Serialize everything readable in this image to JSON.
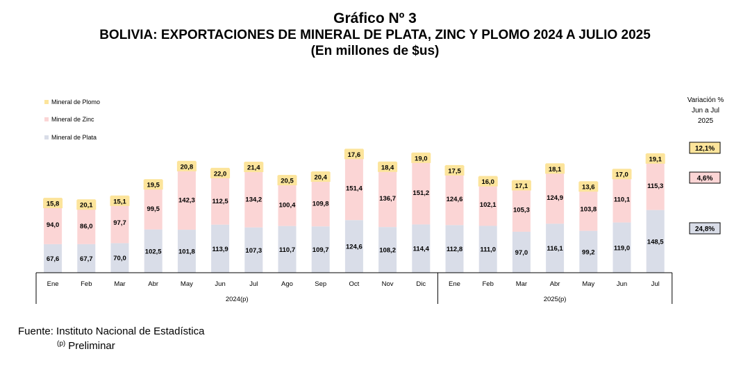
{
  "title": "Gráfico Nº 3",
  "subtitle": "BOLIVIA: EXPORTACIONES DE MINERAL DE PLATA, ZINC Y PLOMO 2024 A JULIO 2025",
  "units": "(En millones de $us)",
  "source": "Fuente: Instituto Nacional de Estadística",
  "note_mark": "(p)",
  "note_text": "Preliminar",
  "variation": {
    "title_lines": [
      "Variación %",
      "Jun a Jul",
      "2025"
    ],
    "plomo": "12,1%",
    "zinc": "4,6%",
    "plata": "24,8%"
  },
  "chart_data": {
    "type": "bar",
    "stacked": true,
    "categories": [
      "Ene",
      "Feb",
      "Mar",
      "Abr",
      "May",
      "Jun",
      "Jul",
      "Ago",
      "Sep",
      "Oct",
      "Nov",
      "Dic",
      "Ene",
      "Feb",
      "Mar",
      "Abr",
      "May",
      "Jun",
      "Jul"
    ],
    "groups": [
      {
        "label": "2024(p)",
        "count": 12
      },
      {
        "label": "2025(p)",
        "count": 7
      }
    ],
    "series": [
      {
        "name": "Mineral de Plata",
        "color": "#d9dde8",
        "values": [
          67.6,
          67.7,
          70.0,
          102.5,
          101.8,
          113.9,
          107.3,
          110.7,
          109.7,
          124.6,
          108.2,
          114.4,
          112.8,
          111.0,
          97.0,
          116.1,
          99.2,
          119.0,
          148.5
        ],
        "labels": [
          "67,6",
          "67,7",
          "70,0",
          "102,5",
          "101,8",
          "113,9",
          "107,3",
          "110,7",
          "109,7",
          "124,6",
          "108,2",
          "114,4",
          "112,8",
          "111,0",
          "97,0",
          "116,1",
          "99,2",
          "119,0",
          "148,5"
        ]
      },
      {
        "name": "Mineral de Zinc",
        "color": "#fbd5d5",
        "values": [
          94.0,
          86.0,
          97.7,
          99.5,
          142.3,
          112.5,
          134.2,
          100.4,
          109.8,
          151.4,
          136.7,
          151.2,
          124.6,
          102.1,
          105.3,
          124.9,
          103.8,
          110.1,
          115.3
        ],
        "labels": [
          "94,0",
          "86,0",
          "97,7",
          "99,5",
          "142,3",
          "112,5",
          "134,2",
          "100,4",
          "109,8",
          "151,4",
          "136,7",
          "151,2",
          "124,6",
          "102,1",
          "105,3",
          "124,9",
          "103,8",
          "110,1",
          "115,3"
        ]
      },
      {
        "name": "Mineral de Plomo",
        "color": "#fce49b",
        "values": [
          15.8,
          20.1,
          15.1,
          19.5,
          20.8,
          22.0,
          21.4,
          20.5,
          20.4,
          17.6,
          18.4,
          19.0,
          17.5,
          16.0,
          17.1,
          18.1,
          13.6,
          17.0,
          19.1
        ],
        "labels": [
          "15,8",
          "20,1",
          "15,1",
          "19,5",
          "20,8",
          "22,0",
          "21,4",
          "20,5",
          "20,4",
          "17,6",
          "18,4",
          "19,0",
          "17,5",
          "16,0",
          "17,1",
          "18,1",
          "13,6",
          "17,0",
          "19,1"
        ]
      }
    ],
    "legend_order": [
      "Mineral de Plomo",
      "Mineral de Zinc",
      "Mineral de Plata"
    ],
    "legend_position": "top-left",
    "ylim": [
      0,
      300
    ],
    "grid": false
  }
}
